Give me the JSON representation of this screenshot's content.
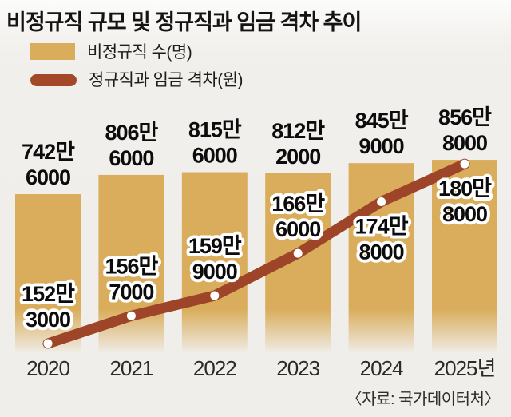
{
  "title": "비정규직 규모 및 정규직과 임금 격차 추이",
  "legend": [
    {
      "label": "비정규직 수(명)",
      "color": "#d9ad5c",
      "type": "bar"
    },
    {
      "label": "정규직과 임금 격차(원)",
      "color": "#a3492a",
      "type": "line"
    }
  ],
  "source": "〈자료: 국가데이터처〉",
  "colors": {
    "background": "#f0eeea",
    "bar": "#d9ad5c",
    "line": "#9e4529",
    "dot": "#ffffff",
    "label_text": "#0c0c0c",
    "label_halo": "#ffffff",
    "axis_text": "#2b2a28"
  },
  "chart_data": {
    "type": "bar",
    "subtype": "bar+line combo, cropped baseline (bars not zero-based)",
    "title": "비정규직 규모 및 정규직과 임금 격차 추이",
    "categories": [
      "2020",
      "2021",
      "2022",
      "2023",
      "2024",
      "2025년"
    ],
    "series": [
      {
        "name": "비정규직 수(명)",
        "type": "bar",
        "color": "#d9ad5c",
        "values": [
          7426000,
          8066000,
          8156000,
          8122000,
          8459000,
          8568000
        ],
        "labels": [
          "742만 6000",
          "806만 6000",
          "815만 6000",
          "812만 2000",
          "845만 9000",
          "856만 8000"
        ]
      },
      {
        "name": "정규직과 임금 격차(원)",
        "type": "line",
        "color": "#9e4529",
        "values": [
          1523000,
          1567000,
          1599000,
          1666000,
          1748000,
          1808000
        ],
        "labels": [
          "152만 3000",
          "156만 7000",
          "159만 9000",
          "166만 6000",
          "174만 8000",
          "180만 8000"
        ],
        "label_placement": [
          "above",
          "above",
          "above",
          "above",
          "below",
          "below"
        ]
      }
    ],
    "xlabel": "",
    "ylabel": "",
    "legend_position": "top-left",
    "grid": false,
    "notes": "bars fade out to background at the bottom; line has white data-point dots and haloed value labels"
  }
}
